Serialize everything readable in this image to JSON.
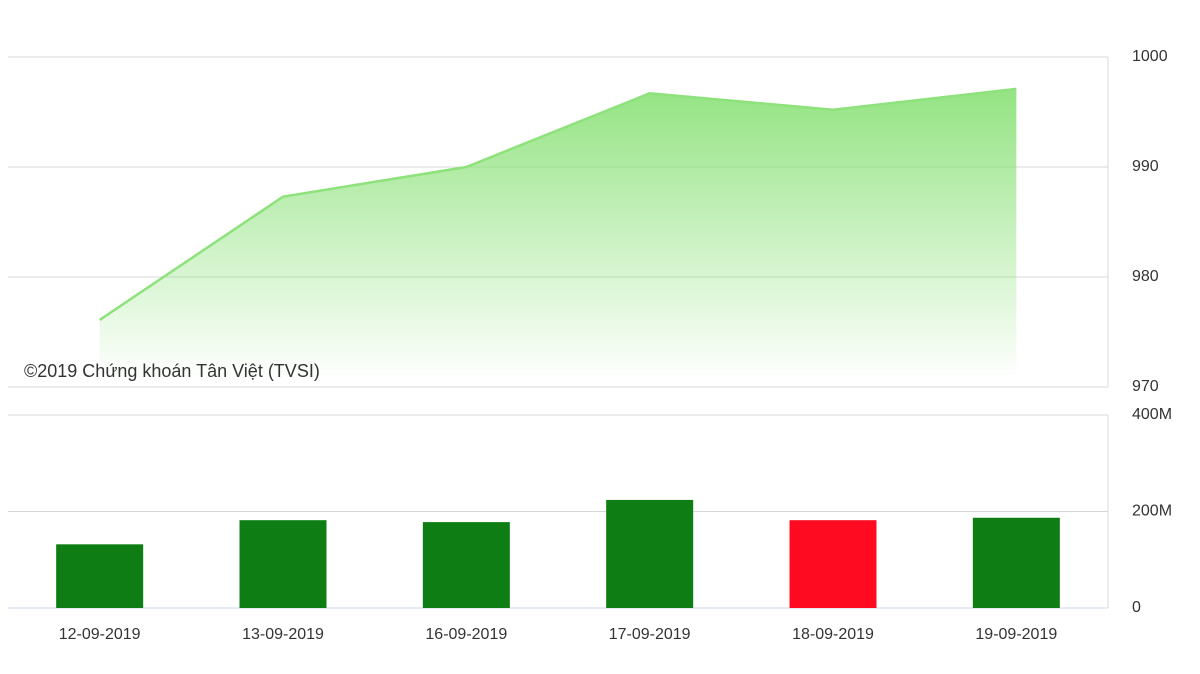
{
  "chart_data": [
    {
      "type": "area",
      "annotation": "©2019 Chứng khoán Tân Việt (TVSI)",
      "values": [
        976.1,
        987.3,
        990.0,
        996.7,
        995.2,
        997.1
      ],
      "color": "#8ee27c",
      "ylim": [
        970,
        1000
      ],
      "yticks": [
        970,
        980,
        990,
        1000
      ],
      "grid": true
    },
    {
      "type": "bar",
      "categories": [
        "12-09-2019",
        "13-09-2019",
        "16-09-2019",
        "17-09-2019",
        "18-09-2019",
        "19-09-2019"
      ],
      "values": [
        132000000,
        182000000,
        178000000,
        224000000,
        182000000,
        187000000
      ],
      "colors": [
        "#0e7d14",
        "#0e7d14",
        "#0e7d14",
        "#0e7d14",
        "#ff0b21",
        "#0e7d14"
      ],
      "ylim": [
        0,
        400000000
      ],
      "yticks": [
        0,
        {
          "value": 200000000,
          "label": "200M"
        },
        {
          "value": 400000000,
          "label": "400M"
        }
      ],
      "grid": true
    }
  ]
}
